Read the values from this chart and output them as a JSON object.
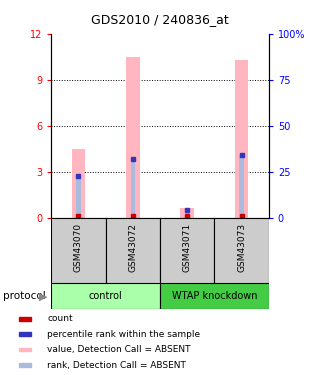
{
  "title": "GDS2010 / 240836_at",
  "samples": [
    "GSM43070",
    "GSM43072",
    "GSM43071",
    "GSM43073"
  ],
  "bar_values": [
    4.5,
    10.5,
    0.65,
    10.3
  ],
  "rank_values": [
    2.7,
    3.85,
    0.5,
    4.05
  ],
  "ylim_left": [
    0,
    12
  ],
  "ylim_right": [
    0,
    100
  ],
  "yticks_left": [
    0,
    3,
    6,
    9,
    12
  ],
  "yticks_right": [
    0,
    25,
    50,
    75,
    100
  ],
  "ytick_labels_right": [
    "0",
    "25",
    "50",
    "75",
    "100%"
  ],
  "bar_color": "#FFB6C1",
  "rank_bar_color": "#AABBDD",
  "count_color": "#CC0000",
  "rank_color": "#3333BB",
  "control_color": "#AAFFAA",
  "wtap_color": "#44CC44",
  "bar_width": 0.25,
  "rank_bar_width": 0.08,
  "title_fontsize": 9,
  "tick_fontsize": 7,
  "sample_fontsize": 6.5,
  "group_fontsize": 7,
  "legend_fontsize": 6.5,
  "legend_items": [
    {
      "label": "count",
      "color": "#CC0000"
    },
    {
      "label": "percentile rank within the sample",
      "color": "#3333BB"
    },
    {
      "label": "value, Detection Call = ABSENT",
      "color": "#FFB6C1"
    },
    {
      "label": "rank, Detection Call = ABSENT",
      "color": "#AABBDD"
    }
  ]
}
